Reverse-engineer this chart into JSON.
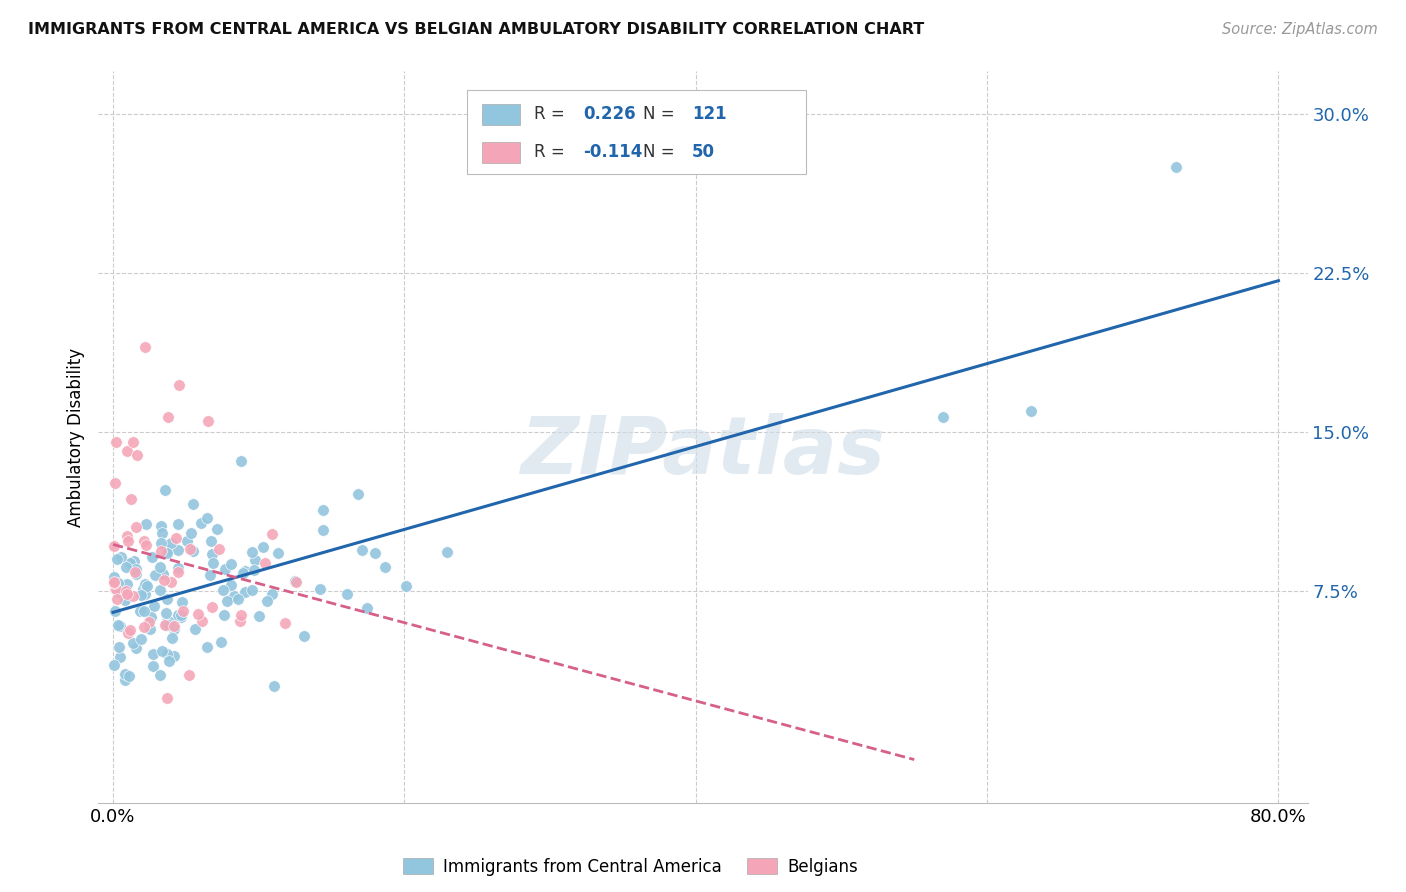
{
  "title": "IMMIGRANTS FROM CENTRAL AMERICA VS BELGIAN AMBULATORY DISABILITY CORRELATION CHART",
  "source": "Source: ZipAtlas.com",
  "ylabel": "Ambulatory Disability",
  "xlim": [
    -0.01,
    0.82
  ],
  "ylim": [
    -0.025,
    0.32
  ],
  "ytick_vals": [
    0.075,
    0.15,
    0.225,
    0.3
  ],
  "ytick_labels": [
    "7.5%",
    "15.0%",
    "22.5%",
    "30.0%"
  ],
  "xtick_vals": [
    0.0,
    0.2,
    0.4,
    0.6,
    0.8
  ],
  "xtick_labels": [
    "0.0%",
    "",
    "",
    "",
    "80.0%"
  ],
  "blue_color": "#92c5de",
  "pink_color": "#f4a6b8",
  "trend_blue": "#2166ac",
  "trend_pink": "#d6608a",
  "watermark": "ZIPatlas",
  "R_blue": 0.226,
  "N_blue": 121,
  "R_pink": -0.114,
  "N_pink": 50,
  "legend_label_blue": "Immigrants from Central America",
  "legend_label_pink": "Belgians",
  "background_color": "#ffffff",
  "grid_color": "#cccccc",
  "tick_color": "#2166ac"
}
